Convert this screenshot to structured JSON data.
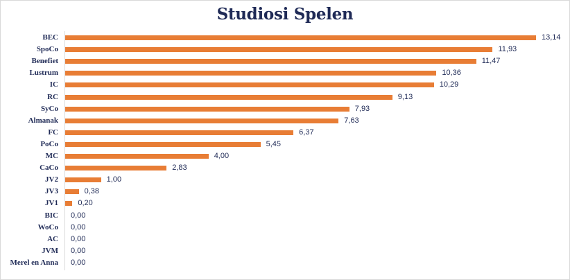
{
  "chart_data": {
    "type": "bar",
    "orientation": "horizontal",
    "title": "Studiosi Spelen",
    "xlabel": "",
    "ylabel": "",
    "grid": false,
    "legend": null,
    "xlim": [
      0,
      13.5
    ],
    "bar_color": "#e87d35",
    "label_color": "#1f2a56",
    "categories": [
      "BEC",
      "SpoCo",
      "Benefiet",
      "Lustrum",
      "IC",
      "RC",
      "SyCo",
      "Almanak",
      "FC",
      "PoCo",
      "MC",
      "CaCo",
      "JV2",
      "JV3",
      "JV1",
      "BIC",
      "WoCo",
      "AC",
      "JVM",
      "Merel en Anna"
    ],
    "values": [
      13.14,
      11.93,
      11.47,
      10.36,
      10.29,
      9.13,
      7.93,
      7.63,
      6.37,
      5.45,
      4.0,
      2.83,
      1.0,
      0.38,
      0.2,
      0.0,
      0.0,
      0.0,
      0.0,
      0.0
    ],
    "value_labels": [
      "13,14",
      "11,93",
      "11,47",
      "10,36",
      "10,29",
      "9,13",
      "7,93",
      "7,63",
      "6,37",
      "5,45",
      "4,00",
      "2,83",
      "1,00",
      "0,38",
      "0,20",
      "0,00",
      "0,00",
      "0,00",
      "0,00",
      "0,00"
    ]
  }
}
